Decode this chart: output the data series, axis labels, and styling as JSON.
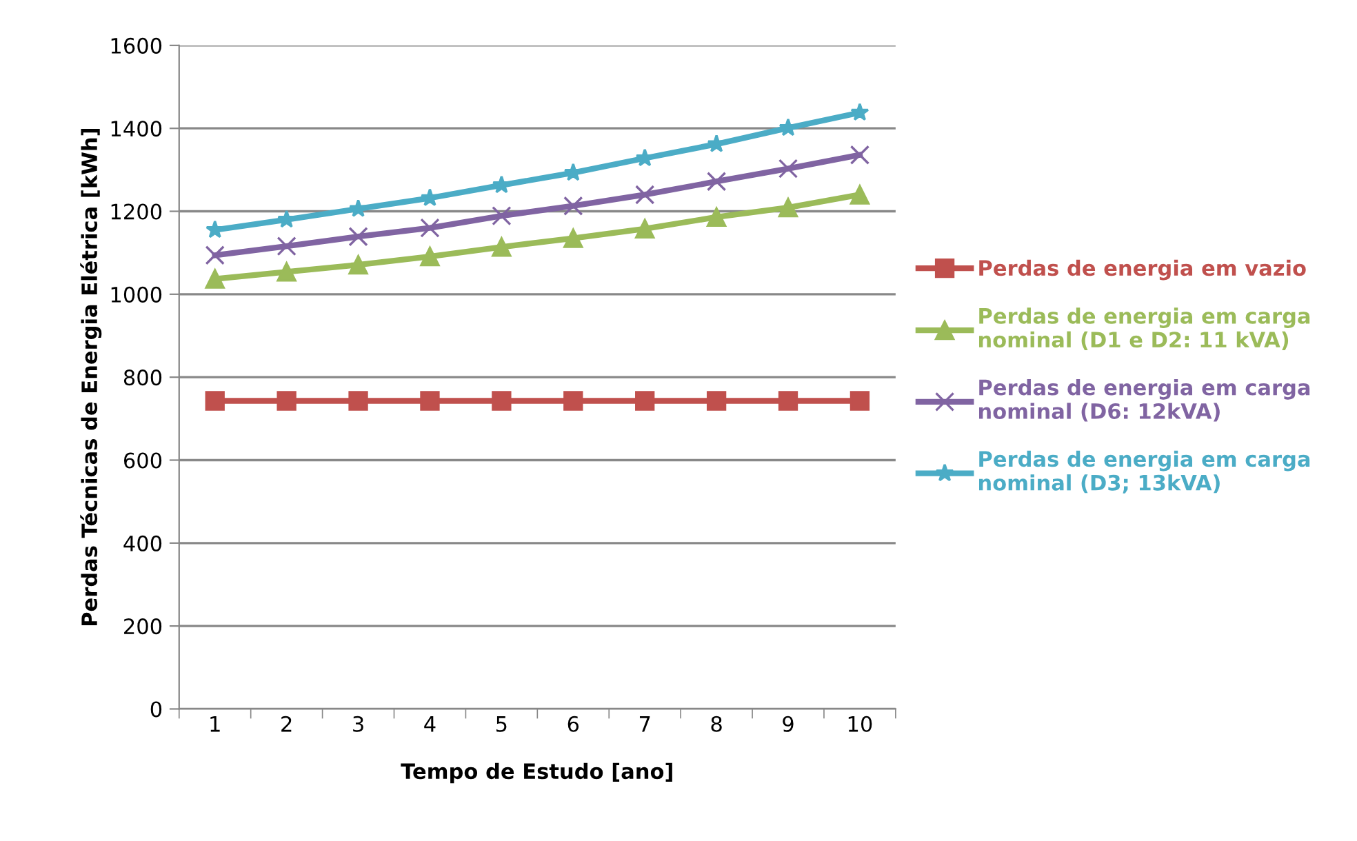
{
  "chart_data": {
    "type": "line",
    "xlabel": "Tempo de Estudo [ano]",
    "ylabel": "Perdas Técnicas de Energia Elétrica [kWh]",
    "categories": [
      "1",
      "2",
      "3",
      "4",
      "5",
      "6",
      "7",
      "8",
      "9",
      "10"
    ],
    "series": [
      {
        "name": "Perdas de energia em vazio",
        "color": "#c0504d",
        "marker": "square",
        "values": [
          743,
          743,
          743,
          743,
          743,
          743,
          743,
          743,
          743,
          743
        ]
      },
      {
        "name": "Perdas de energia em carga\nnominal (D1 e D2: 11 kVA)",
        "color": "#9bbb59",
        "marker": "triangle",
        "values": [
          1037,
          1054,
          1071,
          1091,
          1114,
          1135,
          1158,
          1186,
          1209,
          1240
        ]
      },
      {
        "name": "Perdas de energia em carga\nnominal (D6: 12kVA)",
        "color": "#8064a2",
        "marker": "cross",
        "values": [
          1094,
          1116,
          1139,
          1160,
          1189,
          1213,
          1240,
          1272,
          1303,
          1336
        ]
      },
      {
        "name": "Perdas de energia em carga\nnominal (D3; 13kVA)",
        "color": "#4bacc6",
        "marker": "star",
        "values": [
          1155,
          1180,
          1206,
          1232,
          1263,
          1293,
          1328,
          1362,
          1401,
          1438
        ]
      }
    ],
    "ylim": [
      0,
      1600
    ],
    "yticks": [
      0,
      200,
      400,
      600,
      800,
      1000,
      1200,
      1400,
      1600
    ],
    "grid": "y",
    "legend": "right",
    "line_style": "solid"
  }
}
